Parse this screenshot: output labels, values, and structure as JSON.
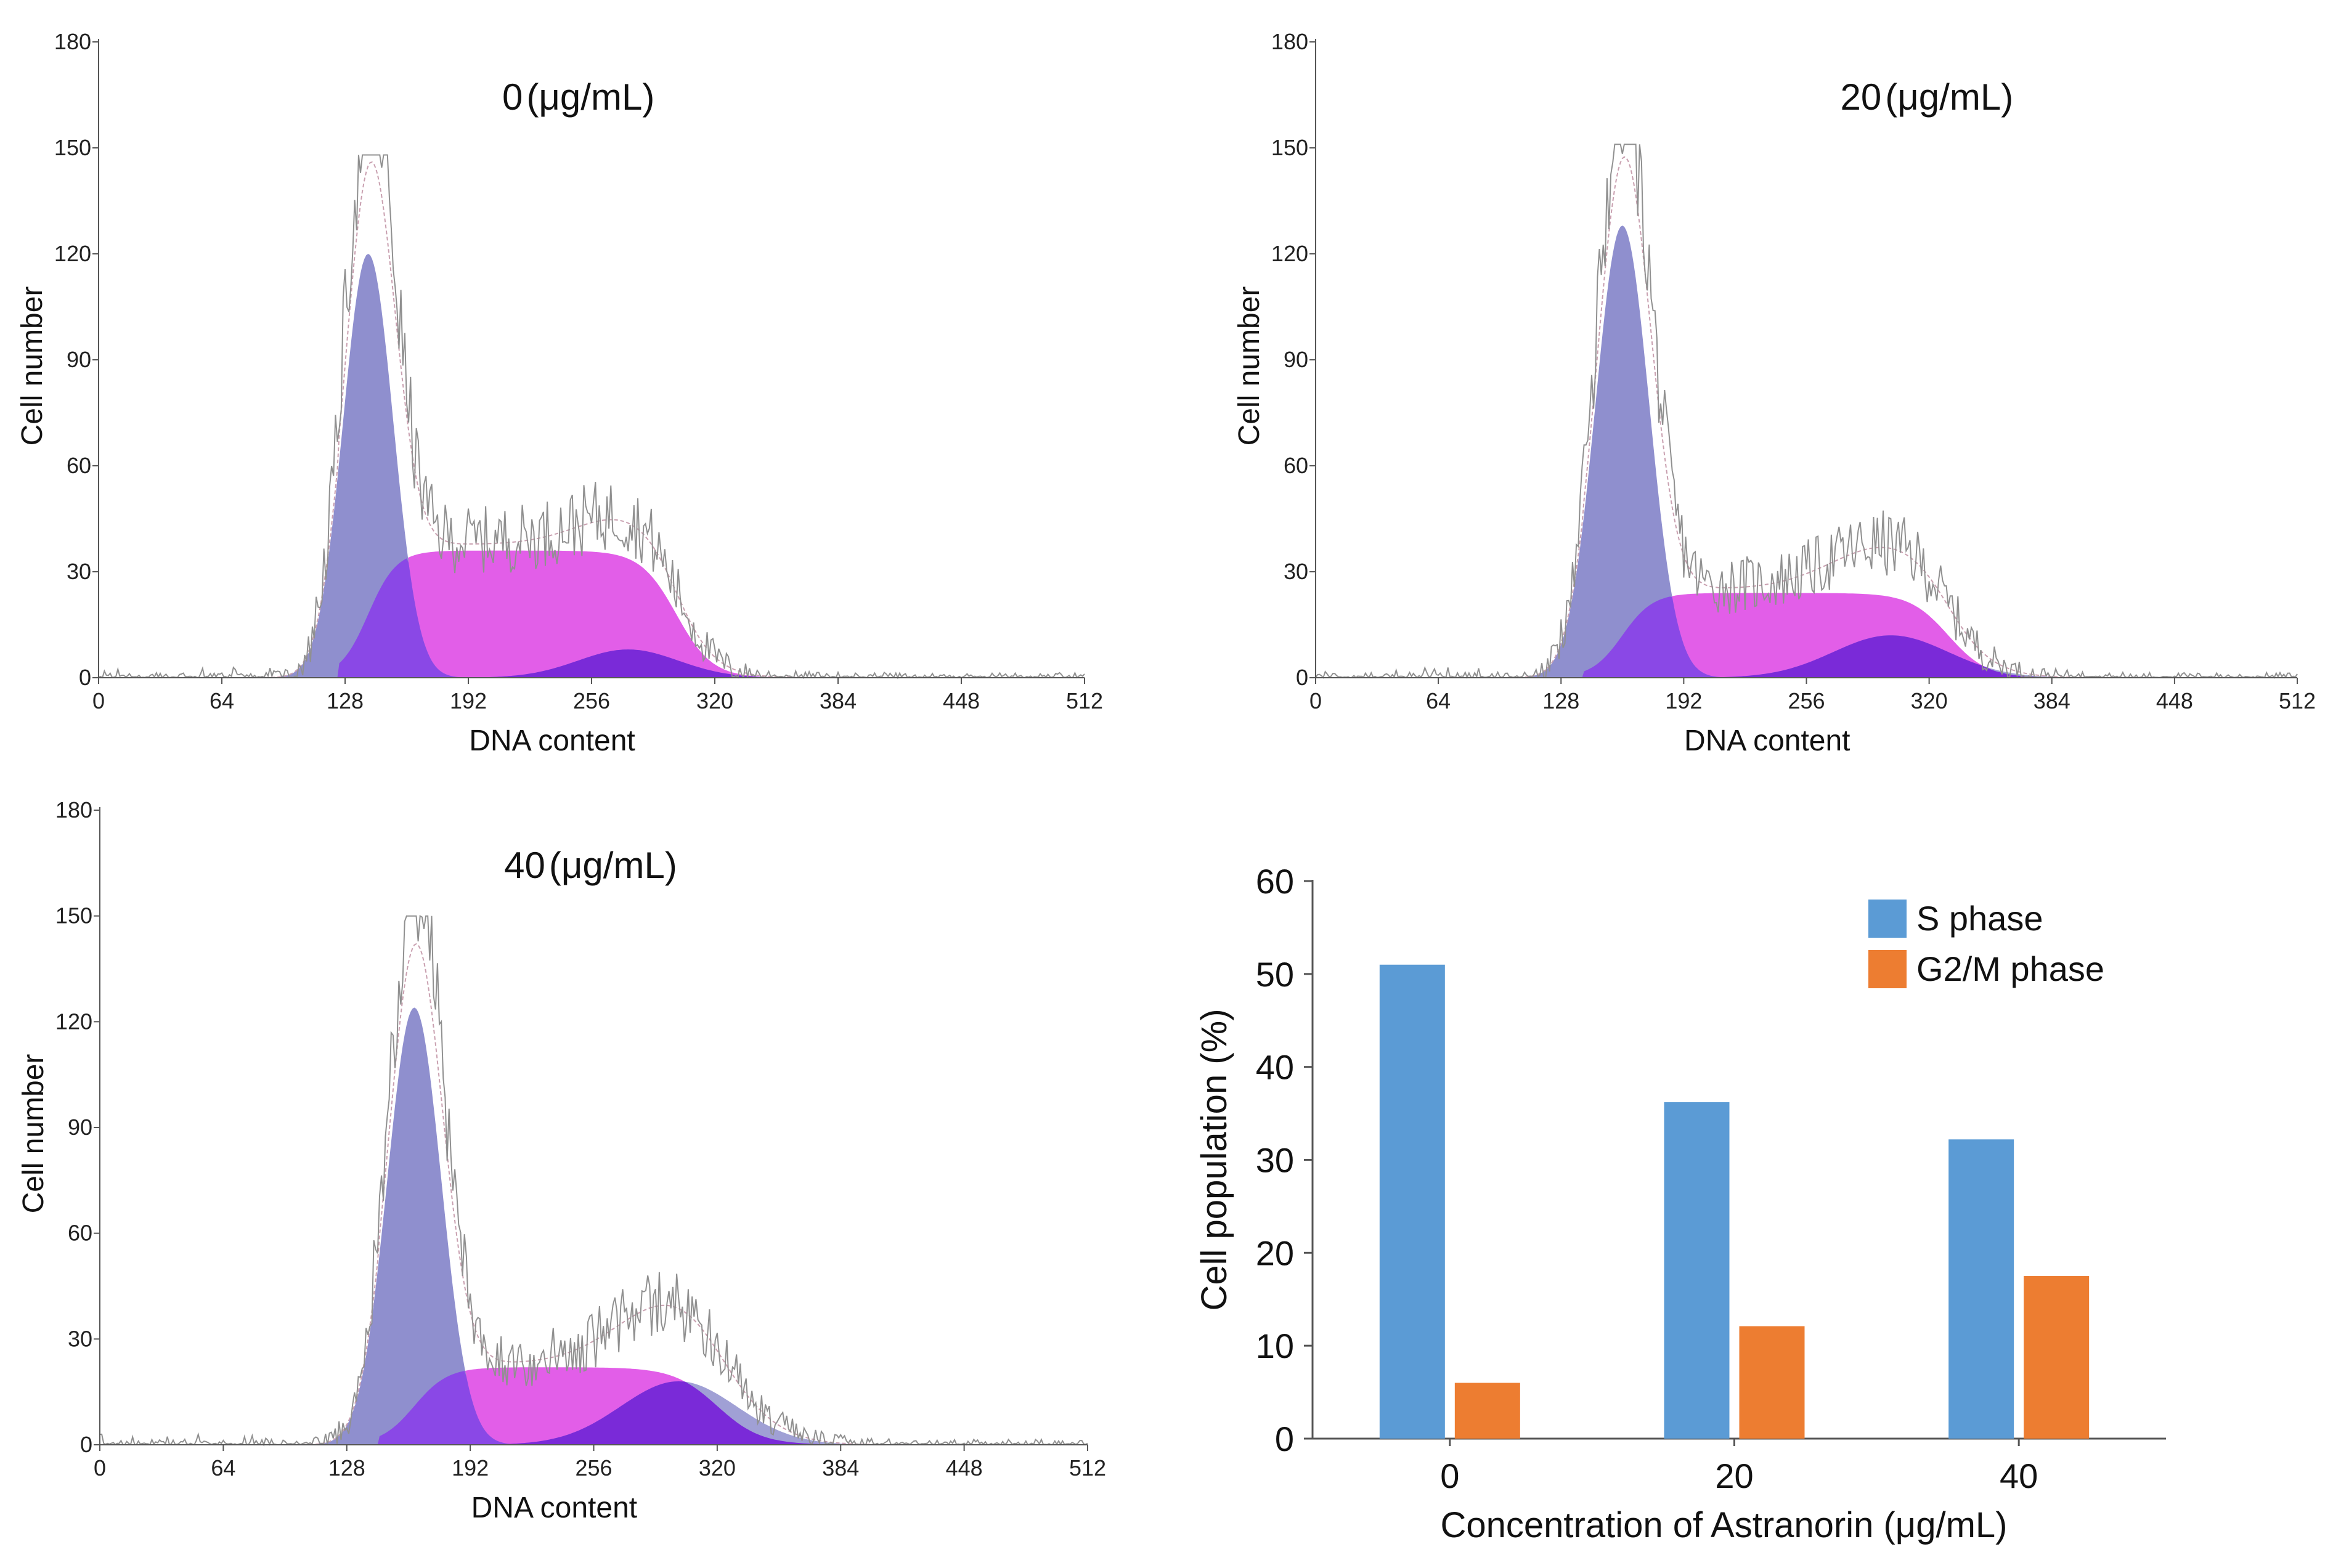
{
  "figure": {
    "colors": {
      "axis": "#555555",
      "g1_fill": "#8f8fce",
      "s_fill": "#e25ee8",
      "g2m_fill": "#7a2ad8",
      "g2m_dark": "#6b1fc2",
      "overlap_fill": "#8a48e6",
      "trace": "#909090",
      "fit_line": "#c9a0b0",
      "bar_s": "#5b9bd5",
      "bar_g2m": "#ed7d31"
    }
  },
  "chart_data": [
    {
      "id": "hist0",
      "type": "area",
      "title_value": "0",
      "title_unit": "(μg/mL)",
      "xlabel": "DNA content",
      "ylabel": "Cell number",
      "xlim": [
        0,
        512
      ],
      "ylim": [
        0,
        180
      ],
      "xticks": [
        "0",
        "64",
        "128",
        "192",
        "256",
        "320",
        "384",
        "448",
        "512"
      ],
      "yticks": [
        "0",
        "30",
        "60",
        "90",
        "120",
        "150",
        "180"
      ],
      "components": {
        "g1": {
          "center": 140,
          "peak": 120,
          "sigma": 13
        },
        "s": {
          "start": 140,
          "end": 300,
          "plateau": 36,
          "rise": 22,
          "fall": 28,
          "left_cut": 125
        },
        "g2m": {
          "center": 275,
          "peak": 8,
          "sigma": 26
        }
      },
      "trace_peak_max": 148
    },
    {
      "id": "hist20",
      "type": "area",
      "title_value": "20",
      "title_unit": "(μg/mL)",
      "xlabel": "DNA content",
      "ylabel": "Cell number",
      "xlim": [
        0,
        512
      ],
      "ylim": [
        0,
        180
      ],
      "xticks": [
        "0",
        "64",
        "128",
        "192",
        "256",
        "320",
        "384",
        "448",
        "512"
      ],
      "yticks": [
        "0",
        "30",
        "60",
        "90",
        "120",
        "150",
        "180"
      ],
      "components": {
        "g1": {
          "center": 160,
          "peak": 128,
          "sigma": 14
        },
        "s": {
          "start": 160,
          "end": 330,
          "plateau": 24,
          "rise": 24,
          "fall": 30,
          "left_cut": 140
        },
        "g2m": {
          "center": 300,
          "peak": 12,
          "sigma": 30
        }
      },
      "trace_peak_max": 151
    },
    {
      "id": "hist40",
      "type": "area",
      "title_value": "40",
      "title_unit": "(μg/mL)",
      "xlabel": "DNA content",
      "ylabel": "Cell number",
      "xlim": [
        0,
        512
      ],
      "ylim": [
        0,
        180
      ],
      "xticks": [
        "0",
        "64",
        "128",
        "192",
        "256",
        "320",
        "384",
        "448",
        "512"
      ],
      "yticks": [
        "0",
        "30",
        "60",
        "90",
        "120",
        "150",
        "180"
      ],
      "components": {
        "g1": {
          "center": 163,
          "peak": 124,
          "sigma": 14
        },
        "s": {
          "start": 163,
          "end": 320,
          "plateau": 22,
          "rise": 26,
          "fall": 34,
          "left_cut": 145
        },
        "g2m": {
          "center": 300,
          "peak": 18,
          "sigma": 30
        }
      },
      "trace_peak_max": 150
    },
    {
      "id": "bars",
      "type": "bar",
      "categories": [
        "0",
        "20",
        "40"
      ],
      "series": [
        {
          "name": "S phase",
          "values": [
            51,
            36.2,
            32.2
          ]
        },
        {
          "name": "G2/M phase",
          "values": [
            6,
            12.1,
            17.5
          ]
        }
      ],
      "xlabel": "Concentration of Astranorin (μg/mL)",
      "ylabel": "Cell population (%)",
      "ylim": [
        0,
        60
      ],
      "yticks": [
        "0",
        "10",
        "20",
        "30",
        "40",
        "50",
        "60"
      ],
      "legend": "top-right"
    }
  ]
}
